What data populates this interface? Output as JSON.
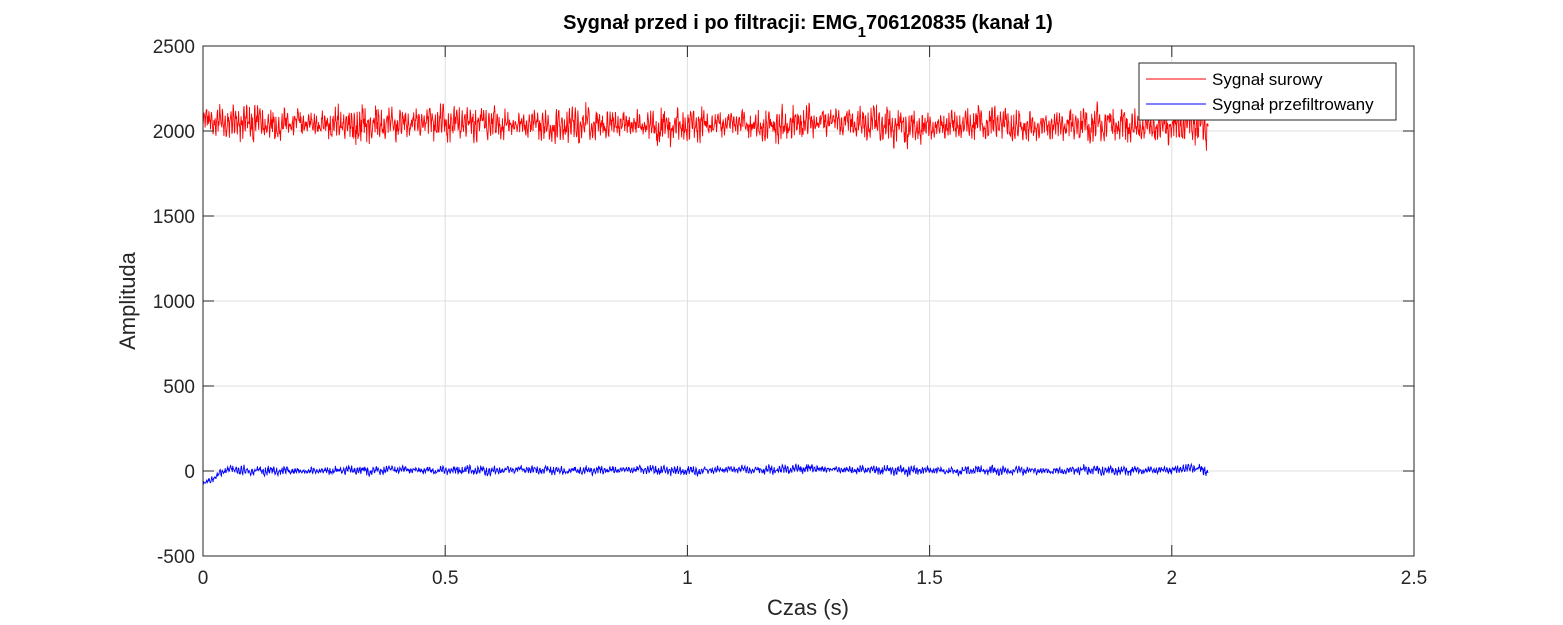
{
  "chart_data": {
    "type": "line",
    "title": {
      "prefix": "Sygnał przed i po filtracji: EMG",
      "subscript": "1",
      "suffix": "706120835 (kanał 1)"
    },
    "xlabel": "Czas (s)",
    "ylabel": "Amplituda",
    "xlim": [
      0,
      2.5
    ],
    "ylim": [
      -500,
      2500
    ],
    "xticks": [
      0,
      0.5,
      1,
      1.5,
      2,
      2.5
    ],
    "xtick_labels": [
      "0",
      "0.5",
      "1",
      "1.5",
      "2",
      "2.5"
    ],
    "yticks": [
      -500,
      0,
      500,
      1000,
      1500,
      2000,
      2500
    ],
    "ytick_labels": [
      "-500",
      "0",
      "500",
      "1000",
      "1500",
      "2000",
      "2500"
    ],
    "grid": true,
    "legend_position": "top-right",
    "duration_s": 2.075,
    "series": [
      {
        "name": "Sygnał surowy",
        "color": "#ff0000",
        "baseline": 2040,
        "typical_range": [
          1930,
          2160
        ],
        "min": 1815,
        "max": 2220,
        "samples": [
          [
            0.0,
            2070
          ],
          [
            0.05,
            2040
          ],
          [
            0.1,
            2050
          ],
          [
            0.15,
            2040
          ],
          [
            0.2,
            2050
          ],
          [
            0.25,
            2040
          ],
          [
            0.3,
            2030
          ],
          [
            0.35,
            2040
          ],
          [
            0.4,
            2040
          ],
          [
            0.45,
            2050
          ],
          [
            0.5,
            2040
          ],
          [
            0.55,
            2050
          ],
          [
            0.6,
            2040
          ],
          [
            0.65,
            2040
          ],
          [
            0.7,
            2030
          ],
          [
            0.75,
            2030
          ],
          [
            0.8,
            2040
          ],
          [
            0.85,
            2050
          ],
          [
            0.9,
            2040
          ],
          [
            0.95,
            2030
          ],
          [
            1.0,
            2030
          ],
          [
            1.05,
            2040
          ],
          [
            1.1,
            2050
          ],
          [
            1.15,
            2030
          ],
          [
            1.2,
            2030
          ],
          [
            1.25,
            2050
          ],
          [
            1.3,
            2060
          ],
          [
            1.35,
            2050
          ],
          [
            1.4,
            2030
          ],
          [
            1.45,
            2020
          ],
          [
            1.5,
            2030
          ],
          [
            1.55,
            2040
          ],
          [
            1.6,
            2050
          ],
          [
            1.65,
            2030
          ],
          [
            1.7,
            2020
          ],
          [
            1.75,
            2030
          ],
          [
            1.8,
            2040
          ],
          [
            1.85,
            2040
          ],
          [
            1.9,
            2030
          ],
          [
            1.95,
            2020
          ],
          [
            2.0,
            2030
          ],
          [
            2.05,
            2040
          ],
          [
            2.075,
            2000
          ]
        ]
      },
      {
        "name": "Sygnał przefiltrowany",
        "color": "#0000ff",
        "baseline": 0,
        "typical_range": [
          -30,
          30
        ],
        "min": -100,
        "max": 80,
        "samples": [
          [
            0.0,
            -80
          ],
          [
            0.05,
            10
          ],
          [
            0.1,
            0
          ],
          [
            0.15,
            5
          ],
          [
            0.2,
            0
          ],
          [
            0.25,
            0
          ],
          [
            0.3,
            5
          ],
          [
            0.35,
            0
          ],
          [
            0.4,
            10
          ],
          [
            0.45,
            5
          ],
          [
            0.5,
            0
          ],
          [
            0.55,
            5
          ],
          [
            0.6,
            0
          ],
          [
            0.65,
            10
          ],
          [
            0.7,
            5
          ],
          [
            0.75,
            0
          ],
          [
            0.8,
            5
          ],
          [
            0.85,
            5
          ],
          [
            0.9,
            10
          ],
          [
            0.95,
            5
          ],
          [
            1.0,
            0
          ],
          [
            1.05,
            5
          ],
          [
            1.1,
            10
          ],
          [
            1.15,
            5
          ],
          [
            1.2,
            10
          ],
          [
            1.25,
            15
          ],
          [
            1.3,
            10
          ],
          [
            1.35,
            5
          ],
          [
            1.4,
            5
          ],
          [
            1.45,
            0
          ],
          [
            1.5,
            5
          ],
          [
            1.55,
            0
          ],
          [
            1.6,
            5
          ],
          [
            1.65,
            0
          ],
          [
            1.7,
            5
          ],
          [
            1.75,
            0
          ],
          [
            1.8,
            5
          ],
          [
            1.85,
            5
          ],
          [
            1.9,
            0
          ],
          [
            1.95,
            5
          ],
          [
            2.0,
            5
          ],
          [
            2.05,
            20
          ],
          [
            2.075,
            -10
          ]
        ]
      }
    ]
  }
}
